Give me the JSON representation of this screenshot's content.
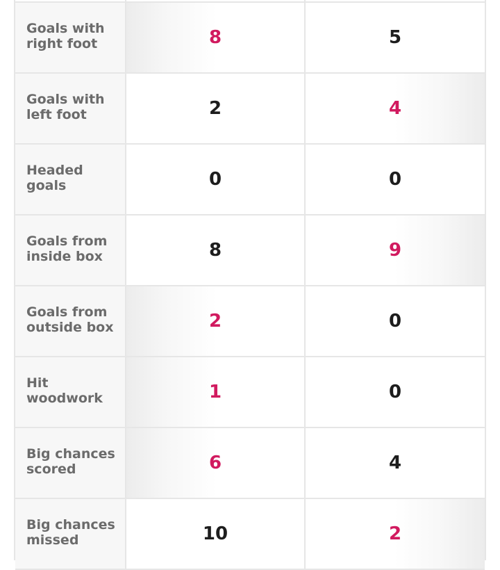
{
  "stats": [
    {
      "label": "Goals with right foot",
      "home": "8",
      "away": "5",
      "lead": "home"
    },
    {
      "label": "Goals with left foot",
      "home": "2",
      "away": "4",
      "lead": "away"
    },
    {
      "label": "Headed goals",
      "home": "0",
      "away": "0",
      "lead": "none"
    },
    {
      "label": "Goals from inside box",
      "home": "8",
      "away": "9",
      "lead": "away"
    },
    {
      "label": "Goals from outside box",
      "home": "2",
      "away": "0",
      "lead": "home"
    },
    {
      "label": "Hit woodwork",
      "home": "1",
      "away": "0",
      "lead": "home"
    },
    {
      "label": "Big chances scored",
      "home": "6",
      "away": "4",
      "lead": "home"
    },
    {
      "label": "Big chances missed",
      "home": "10",
      "away": "2",
      "lead": "away"
    }
  ],
  "colors": {
    "lead": "#d11a5f",
    "text": "#1d1d1d",
    "label": "#6b6b6b",
    "border": "#e6e6e6"
  }
}
